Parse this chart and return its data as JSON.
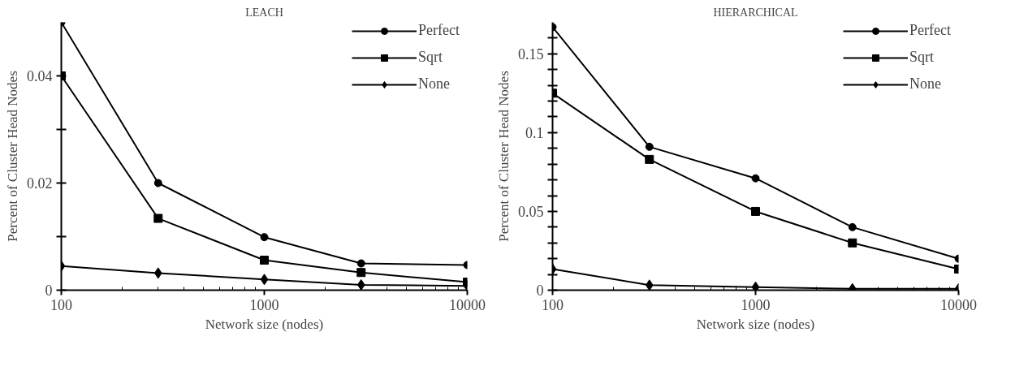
{
  "chart_data": [
    {
      "type": "line",
      "title": "LEACH",
      "xlabel": "Network size (nodes)",
      "ylabel": "Percent of Cluster Head Nodes",
      "log": "x",
      "x": [
        100,
        300,
        1000,
        3000,
        10000
      ],
      "xlim": [
        100,
        10000
      ],
      "xticks": [
        100,
        1000,
        10000
      ],
      "ylim": [
        0,
        0.05
      ],
      "yticks": [
        0,
        {
          "value": 0.01,
          "label": null
        },
        0.02,
        {
          "value": 0.03,
          "label": null
        },
        0.04
      ],
      "grid": false,
      "legend": "top right",
      "line_style": "solid",
      "series": [
        {
          "name": "Perfect",
          "color": "#000000",
          "marker": "circle",
          "values": [
            0.05,
            0.02,
            0.0099,
            0.005,
            0.0047
          ]
        },
        {
          "name": "Sqrt",
          "color": "#000000",
          "marker": "square",
          "values": [
            0.04,
            0.0134,
            0.0056,
            0.0033,
            0.0015
          ]
        },
        {
          "name": "None",
          "color": "#000000",
          "marker": "diamond",
          "values": [
            0.0045,
            0.0032,
            0.002,
            0.001,
            0.0008
          ]
        }
      ]
    },
    {
      "type": "line",
      "title": "HIERARCHICAL",
      "xlabel": "Network size (nodes)",
      "ylabel": "Percent of Cluster Head Nodes",
      "log": "x",
      "x": [
        100,
        300,
        1000,
        3000,
        10000
      ],
      "xlim": [
        100,
        10000
      ],
      "xticks": [
        100,
        1000,
        10000
      ],
      "ylim": [
        0,
        0.17
      ],
      "yticks": [
        0,
        {
          "value": 0.01,
          "label": null
        },
        {
          "value": 0.02,
          "label": null
        },
        {
          "value": 0.03,
          "label": null
        },
        {
          "value": 0.04,
          "label": null
        },
        0.05,
        {
          "value": 0.06,
          "label": null
        },
        {
          "value": 0.07,
          "label": null
        },
        {
          "value": 0.08,
          "label": null
        },
        {
          "value": 0.09,
          "label": null
        },
        0.1,
        {
          "value": 0.11,
          "label": null
        },
        {
          "value": 0.12,
          "label": null
        },
        {
          "value": 0.13,
          "label": null
        },
        {
          "value": 0.14,
          "label": null
        },
        0.15,
        {
          "value": 0.16,
          "label": null
        }
      ],
      "grid": false,
      "legend": "top right",
      "line_style": "solid",
      "series": [
        {
          "name": "Perfect",
          "color": "#000000",
          "marker": "circle",
          "values": [
            0.167,
            0.091,
            0.071,
            0.04,
            0.02
          ]
        },
        {
          "name": "Sqrt",
          "color": "#000000",
          "marker": "square",
          "values": [
            0.125,
            0.083,
            0.05,
            0.03,
            0.0134
          ]
        },
        {
          "name": "None",
          "color": "#000000",
          "marker": "diamond",
          "values": [
            0.0134,
            0.0032,
            0.0019,
            0.0009,
            0.0009
          ]
        }
      ]
    }
  ]
}
